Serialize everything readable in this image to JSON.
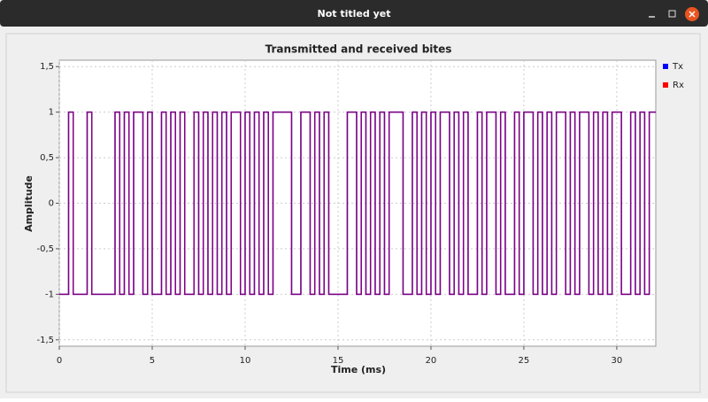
{
  "window": {
    "title": "Not titled yet"
  },
  "chart_data": {
    "type": "step",
    "title": "Transmitted and received bites",
    "x_label": "Time (ms)",
    "y_label": "Amplitude",
    "x": [
      0,
      0.25,
      0.5,
      0.75,
      1,
      1.25,
      1.5,
      1.75,
      2,
      2.25,
      2.5,
      2.75,
      3,
      3.25,
      3.5,
      3.75,
      4,
      4.25,
      4.5,
      4.75,
      5,
      5.25,
      5.5,
      5.75,
      6,
      6.25,
      6.5,
      6.75,
      7,
      7.25,
      7.5,
      7.75,
      8,
      8.25,
      8.5,
      8.75,
      9,
      9.25,
      9.5,
      9.75,
      10,
      10.25,
      10.5,
      10.75,
      11,
      11.25,
      11.5,
      11.75,
      12,
      12.25,
      12.5,
      12.75,
      13,
      13.25,
      13.5,
      13.75,
      14,
      14.25,
      14.5,
      14.75,
      15,
      15.25,
      15.5,
      15.75,
      16,
      16.25,
      16.5,
      16.75,
      17,
      17.25,
      17.5,
      17.75,
      18,
      18.25,
      18.5,
      18.75,
      19,
      19.25,
      19.5,
      19.75,
      20,
      20.25,
      20.5,
      20.75,
      21,
      21.25,
      21.5,
      21.75,
      22,
      22.25,
      22.5,
      22.75,
      23,
      23.25,
      23.5,
      23.75,
      24,
      24.25,
      24.5,
      24.75,
      25,
      25.25,
      25.5,
      25.75,
      26,
      26.25,
      26.5,
      26.75,
      27,
      27.25,
      27.5,
      27.75,
      28,
      28.25,
      28.5,
      28.75,
      29,
      29.25,
      29.5,
      29.75,
      30,
      30.25,
      30.5,
      30.75,
      31,
      31.25,
      31.5,
      31.75
    ],
    "series": [
      {
        "name": "Tx",
        "color": "#0000ff",
        "values": [
          -1,
          -1,
          1,
          -1,
          -1,
          -1,
          1,
          -1,
          -1,
          -1,
          -1,
          -1,
          1,
          -1,
          1,
          -1,
          1,
          1,
          -1,
          1,
          -1,
          -1,
          1,
          -1,
          1,
          -1,
          1,
          -1,
          -1,
          1,
          -1,
          1,
          -1,
          1,
          -1,
          1,
          -1,
          1,
          1,
          -1,
          1,
          -1,
          1,
          -1,
          1,
          -1,
          1,
          1,
          1,
          1,
          -1,
          -1,
          1,
          1,
          -1,
          1,
          -1,
          1,
          -1,
          -1,
          -1,
          -1,
          1,
          1,
          -1,
          1,
          -1,
          1,
          -1,
          1,
          -1,
          1,
          1,
          1,
          -1,
          -1,
          1,
          -1,
          1,
          -1,
          1,
          -1,
          1,
          1,
          -1,
          1,
          -1,
          1,
          -1,
          -1,
          1,
          -1,
          1,
          1,
          -1,
          1,
          -1,
          -1,
          1,
          -1,
          1,
          1,
          -1,
          1,
          -1,
          1,
          -1,
          1,
          1,
          -1,
          1,
          -1,
          1,
          1,
          -1,
          1,
          -1,
          1,
          -1,
          1,
          1,
          -1,
          -1,
          1,
          -1,
          1,
          -1,
          1
        ]
      },
      {
        "name": "Rx",
        "color": "#ff0000",
        "values": [
          -1,
          -1,
          1,
          -1,
          -1,
          -1,
          1,
          -1,
          -1,
          -1,
          -1,
          -1,
          1,
          -1,
          1,
          -1,
          1,
          1,
          -1,
          1,
          -1,
          -1,
          1,
          -1,
          1,
          -1,
          1,
          -1,
          -1,
          1,
          -1,
          1,
          -1,
          1,
          -1,
          1,
          -1,
          1,
          1,
          -1,
          1,
          -1,
          1,
          -1,
          1,
          -1,
          1,
          1,
          1,
          1,
          -1,
          -1,
          1,
          1,
          -1,
          1,
          -1,
          1,
          -1,
          -1,
          -1,
          -1,
          1,
          1,
          -1,
          1,
          -1,
          1,
          -1,
          1,
          -1,
          1,
          1,
          1,
          -1,
          -1,
          1,
          -1,
          1,
          -1,
          1,
          -1,
          1,
          1,
          -1,
          1,
          -1,
          1,
          -1,
          -1,
          1,
          -1,
          1,
          1,
          -1,
          1,
          -1,
          -1,
          1,
          -1,
          1,
          1,
          -1,
          1,
          -1,
          1,
          -1,
          1,
          1,
          -1,
          1,
          -1,
          1,
          1,
          -1,
          1,
          -1,
          1,
          -1,
          1,
          1,
          -1,
          -1,
          1,
          -1,
          1,
          -1,
          1
        ]
      }
    ],
    "xlim": [
      0,
      32.1
    ],
    "xticks": [
      0,
      5,
      10,
      15,
      20,
      25,
      30
    ],
    "ylim": [
      -1.57,
      1.57
    ],
    "yticks": [
      {
        "value": -1.5,
        "label": "-1,5"
      },
      -1,
      {
        "value": -0.5,
        "label": "-0,5"
      },
      0,
      {
        "value": 0.5,
        "label": "0,5"
      },
      1,
      {
        "value": 1.5,
        "label": "1,5"
      }
    ],
    "grid": true,
    "legend": "right"
  }
}
